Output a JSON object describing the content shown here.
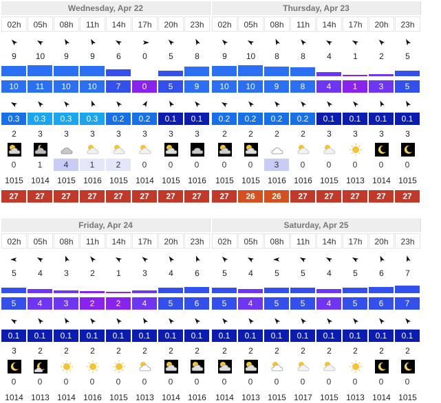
{
  "colors": {
    "wind_max": "#2b6ff2",
    "wind_mid": "#3450ec",
    "wind_low": "#6e36f0",
    "wind_zero": "#8a22ee",
    "wave_dark": "#0b1db0",
    "wave_mid": "#1670e9",
    "wave_light": "#1aa6ee",
    "temp_dark": "#c1392b",
    "temp_orange": "#d4501f",
    "rain_bg": "#c9cdf5"
  },
  "sections": [
    {
      "days": [
        {
          "title": "Wednesday, Apr 22",
          "hours": [
            "02h",
            "05h",
            "08h",
            "11h",
            "14h",
            "17h",
            "20h",
            "23h"
          ],
          "wind_rot": [
            315,
            300,
            330,
            330,
            300,
            90,
            315,
            335
          ],
          "gust": [
            "9",
            "10",
            "9",
            "9",
            "6",
            "0",
            "5",
            "8"
          ],
          "wind": [
            "10",
            "11",
            "10",
            "10",
            "7",
            "0",
            "5",
            "9"
          ],
          "wind_level": [
            0.9,
            0.95,
            0.9,
            0.9,
            0.6,
            0.0,
            0.45,
            0.8
          ],
          "swell_rot": [
            300,
            320,
            320,
            340,
            320,
            30,
            330,
            320
          ],
          "wave": [
            "0.3",
            "0.3",
            "0.3",
            "0.3",
            "0.2",
            "0.2",
            "0.1",
            "0.1"
          ],
          "period": [
            "2",
            "3",
            "3",
            "3",
            "3",
            "3",
            "3",
            "3"
          ],
          "sky": [
            "night-cloud-sun",
            "cloud-night",
            "cloud-grey",
            "sun-cloud",
            "sun-cloud",
            "sun-cloud",
            "sun-cloud-dark",
            "cloud-dark"
          ],
          "rain": [
            "0",
            "1",
            "4",
            "1",
            "2",
            "0",
            "0",
            "0"
          ],
          "rain_level": [
            0,
            0,
            0.8,
            0.3,
            0.4,
            0,
            0,
            0
          ],
          "pressure": [
            "1015",
            "1014",
            "1015",
            "1016",
            "1015",
            "1014",
            "1015",
            "1016"
          ],
          "temp": [
            "27",
            "27",
            "27",
            "27",
            "27",
            "27",
            "27",
            "27"
          ]
        },
        {
          "title": "Thursday, Apr 23",
          "hours": [
            "02h",
            "05h",
            "08h",
            "11h",
            "14h",
            "17h",
            "20h",
            "23h"
          ],
          "wind_rot": [
            315,
            300,
            335,
            320,
            300,
            300,
            315,
            330
          ],
          "gust": [
            "9",
            "10",
            "8",
            "8",
            "4",
            "1",
            "2",
            "5"
          ],
          "wind": [
            "10",
            "10",
            "9",
            "8",
            "4",
            "1",
            "3",
            "5"
          ],
          "wind_level": [
            0.9,
            0.95,
            0.8,
            0.75,
            0.35,
            0.1,
            0.2,
            0.45
          ],
          "swell_rot": [
            300,
            320,
            320,
            320,
            320,
            320,
            335,
            330
          ],
          "wave": [
            "0.2",
            "0.2",
            "0.2",
            "0.2",
            "0.1",
            "0.1",
            "0.1",
            "0.1"
          ],
          "period": [
            "2",
            "2",
            "2",
            "2",
            "3",
            "3",
            "3",
            "3"
          ],
          "sky": [
            "night-cloud-dark",
            "sun-cloud-dark",
            "cloud-white",
            "sun-cloud",
            "sun-cloud",
            "sun",
            "moon",
            "moon"
          ],
          "rain": [
            "0",
            "0",
            "3",
            "0",
            "0",
            "0",
            "0",
            "0"
          ],
          "rain_level": [
            0,
            0,
            0.8,
            0,
            0,
            0,
            0,
            0
          ],
          "pressure": [
            "1015",
            "1015",
            "1016",
            "1016",
            "1015",
            "1013",
            "1014",
            "1015"
          ],
          "temp": [
            "27",
            "26",
            "26",
            "27",
            "27",
            "27",
            "27",
            "27"
          ]
        }
      ]
    },
    {
      "days": [
        {
          "title": "Friday, Apr 24",
          "hours": [
            "02h",
            "05h",
            "08h",
            "11h",
            "14h",
            "17h",
            "20h",
            "23h"
          ],
          "wind_rot": [
            270,
            300,
            340,
            320,
            300,
            310,
            325,
            340
          ],
          "gust": [
            "5",
            "4",
            "3",
            "2",
            "1",
            "3",
            "4",
            "6"
          ],
          "wind": [
            "5",
            "4",
            "3",
            "2",
            "2",
            "4",
            "5",
            "6"
          ],
          "wind_level": [
            0.45,
            0.35,
            0.25,
            0.15,
            0.1,
            0.25,
            0.45,
            0.55
          ],
          "swell_rot": [
            300,
            320,
            330,
            320,
            320,
            330,
            320,
            320
          ],
          "wave": [
            "0.1",
            "0.1",
            "0.1",
            "0.1",
            "0.1",
            "0.1",
            "0.1",
            "0.1"
          ],
          "period": [
            "3",
            "2",
            "2",
            "2",
            "2",
            "2",
            "2",
            "2"
          ],
          "sky": [
            "moon",
            "moon-cloud",
            "sun",
            "sun",
            "sun",
            "sun-cloud-white",
            "sun-cloud-dark",
            "sun-cloud-dark"
          ],
          "rain": [
            "0",
            "0",
            "0",
            "0",
            "0",
            "0",
            "0",
            "0"
          ],
          "rain_level": [
            0,
            0,
            0,
            0,
            0,
            0,
            0,
            0
          ],
          "pressure": [
            "1014",
            "1013",
            "1014",
            "1016",
            "1015",
            "1013",
            "1014",
            "1016"
          ],
          "temp": []
        },
        {
          "title": "Saturday, Apr 25",
          "hours": [
            "02h",
            "05h",
            "08h",
            "11h",
            "14h",
            "17h",
            "20h",
            "23h"
          ],
          "wind_rot": [
            315,
            300,
            270,
            300,
            300,
            300,
            335,
            345
          ],
          "gust": [
            "5",
            "4",
            "5",
            "5",
            "4",
            "5",
            "6",
            "7"
          ],
          "wind": [
            "5",
            "4",
            "5",
            "5",
            "4",
            "5",
            "6",
            "7"
          ],
          "wind_level": [
            0.45,
            0.35,
            0.45,
            0.45,
            0.35,
            0.45,
            0.55,
            0.65
          ],
          "swell_rot": [
            320,
            320,
            320,
            320,
            320,
            320,
            320,
            320
          ],
          "wave": [
            "0.1",
            "0.1",
            "0.1",
            "0.1",
            "0.1",
            "0.1",
            "0.1",
            "0.1"
          ],
          "period": [
            "2",
            "2",
            "2",
            "2",
            "2",
            "2",
            "2",
            "2"
          ],
          "sky": [
            "sun-cloud-dark",
            "sun-cloud-dark",
            "sun-cloud-white",
            "sun-cloud",
            "sun-cloud",
            "sun",
            "moon",
            "moon"
          ],
          "rain": [
            "0",
            "0",
            "0",
            "0",
            "0",
            "0",
            "0",
            "0"
          ],
          "rain_level": [
            0,
            0,
            0,
            0,
            0,
            0,
            0,
            0
          ],
          "pressure": [
            "1014",
            "1013",
            "1015",
            "1017",
            "1015",
            "1013",
            "1014",
            "1015"
          ],
          "temp": []
        }
      ]
    }
  ]
}
